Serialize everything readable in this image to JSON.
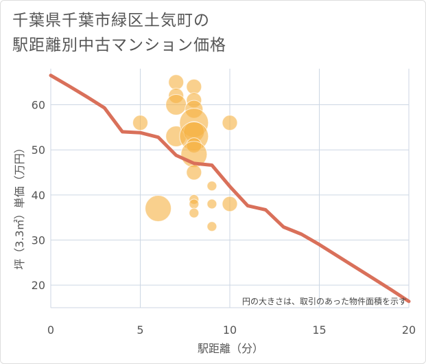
{
  "title_lines": [
    "千葉県千葉市緑区土気町の",
    "駅距離別中古マンション価格"
  ],
  "chart_data": {
    "type": "scatter",
    "title": "千葉県千葉市緑区土気町の駅距離別中古マンション価格",
    "xlabel": "駅距離（分）",
    "ylabel": "坪（3.3㎡）単価（万円）",
    "xlim": [
      0,
      20
    ],
    "ylim": [
      15,
      68
    ],
    "xticks": [
      0,
      5,
      10,
      15,
      20
    ],
    "yticks": [
      20,
      30,
      40,
      50,
      60
    ],
    "grid": true,
    "note": "円の大きさは、取引のあった物件面積を示す",
    "colors": {
      "bubble": "#f5b041",
      "line": "#d9705a",
      "grid": "#ccd6e3"
    },
    "bubbles": [
      {
        "x": 5,
        "y": 56,
        "size": 3
      },
      {
        "x": 6,
        "y": 37,
        "size": 7
      },
      {
        "x": 7,
        "y": 65,
        "size": 3
      },
      {
        "x": 7,
        "y": 62,
        "size": 3
      },
      {
        "x": 7,
        "y": 60,
        "size": 5
      },
      {
        "x": 7,
        "y": 53,
        "size": 5
      },
      {
        "x": 8,
        "y": 64,
        "size": 3
      },
      {
        "x": 8,
        "y": 61,
        "size": 3
      },
      {
        "x": 8,
        "y": 59,
        "size": 4
      },
      {
        "x": 8,
        "y": 56,
        "size": 8
      },
      {
        "x": 8,
        "y": 54,
        "size": 5
      },
      {
        "x": 8,
        "y": 53,
        "size": 8
      },
      {
        "x": 8,
        "y": 51,
        "size": 3
      },
      {
        "x": 8,
        "y": 49,
        "size": 7
      },
      {
        "x": 8,
        "y": 45,
        "size": 3
      },
      {
        "x": 8,
        "y": 39,
        "size": 1
      },
      {
        "x": 8,
        "y": 38,
        "size": 1
      },
      {
        "x": 8,
        "y": 36,
        "size": 1
      },
      {
        "x": 9,
        "y": 42,
        "size": 1
      },
      {
        "x": 9,
        "y": 38,
        "size": 1
      },
      {
        "x": 9,
        "y": 33,
        "size": 1
      },
      {
        "x": 10,
        "y": 56,
        "size": 3
      },
      {
        "x": 10,
        "y": 38,
        "size": 3
      }
    ],
    "line": {
      "x": [
        0,
        1,
        2,
        3,
        4,
        5,
        6,
        7,
        8,
        9,
        10,
        11,
        12,
        13,
        14,
        15,
        16,
        17,
        18,
        19,
        20
      ],
      "y": [
        66.5,
        64.2,
        61.8,
        59.3,
        54.0,
        53.8,
        52.8,
        48.8,
        47.0,
        46.6,
        41.9,
        37.6,
        36.7,
        32.9,
        31.3,
        29.0,
        26.5,
        24.0,
        21.5,
        19.0,
        16.4
      ]
    }
  }
}
